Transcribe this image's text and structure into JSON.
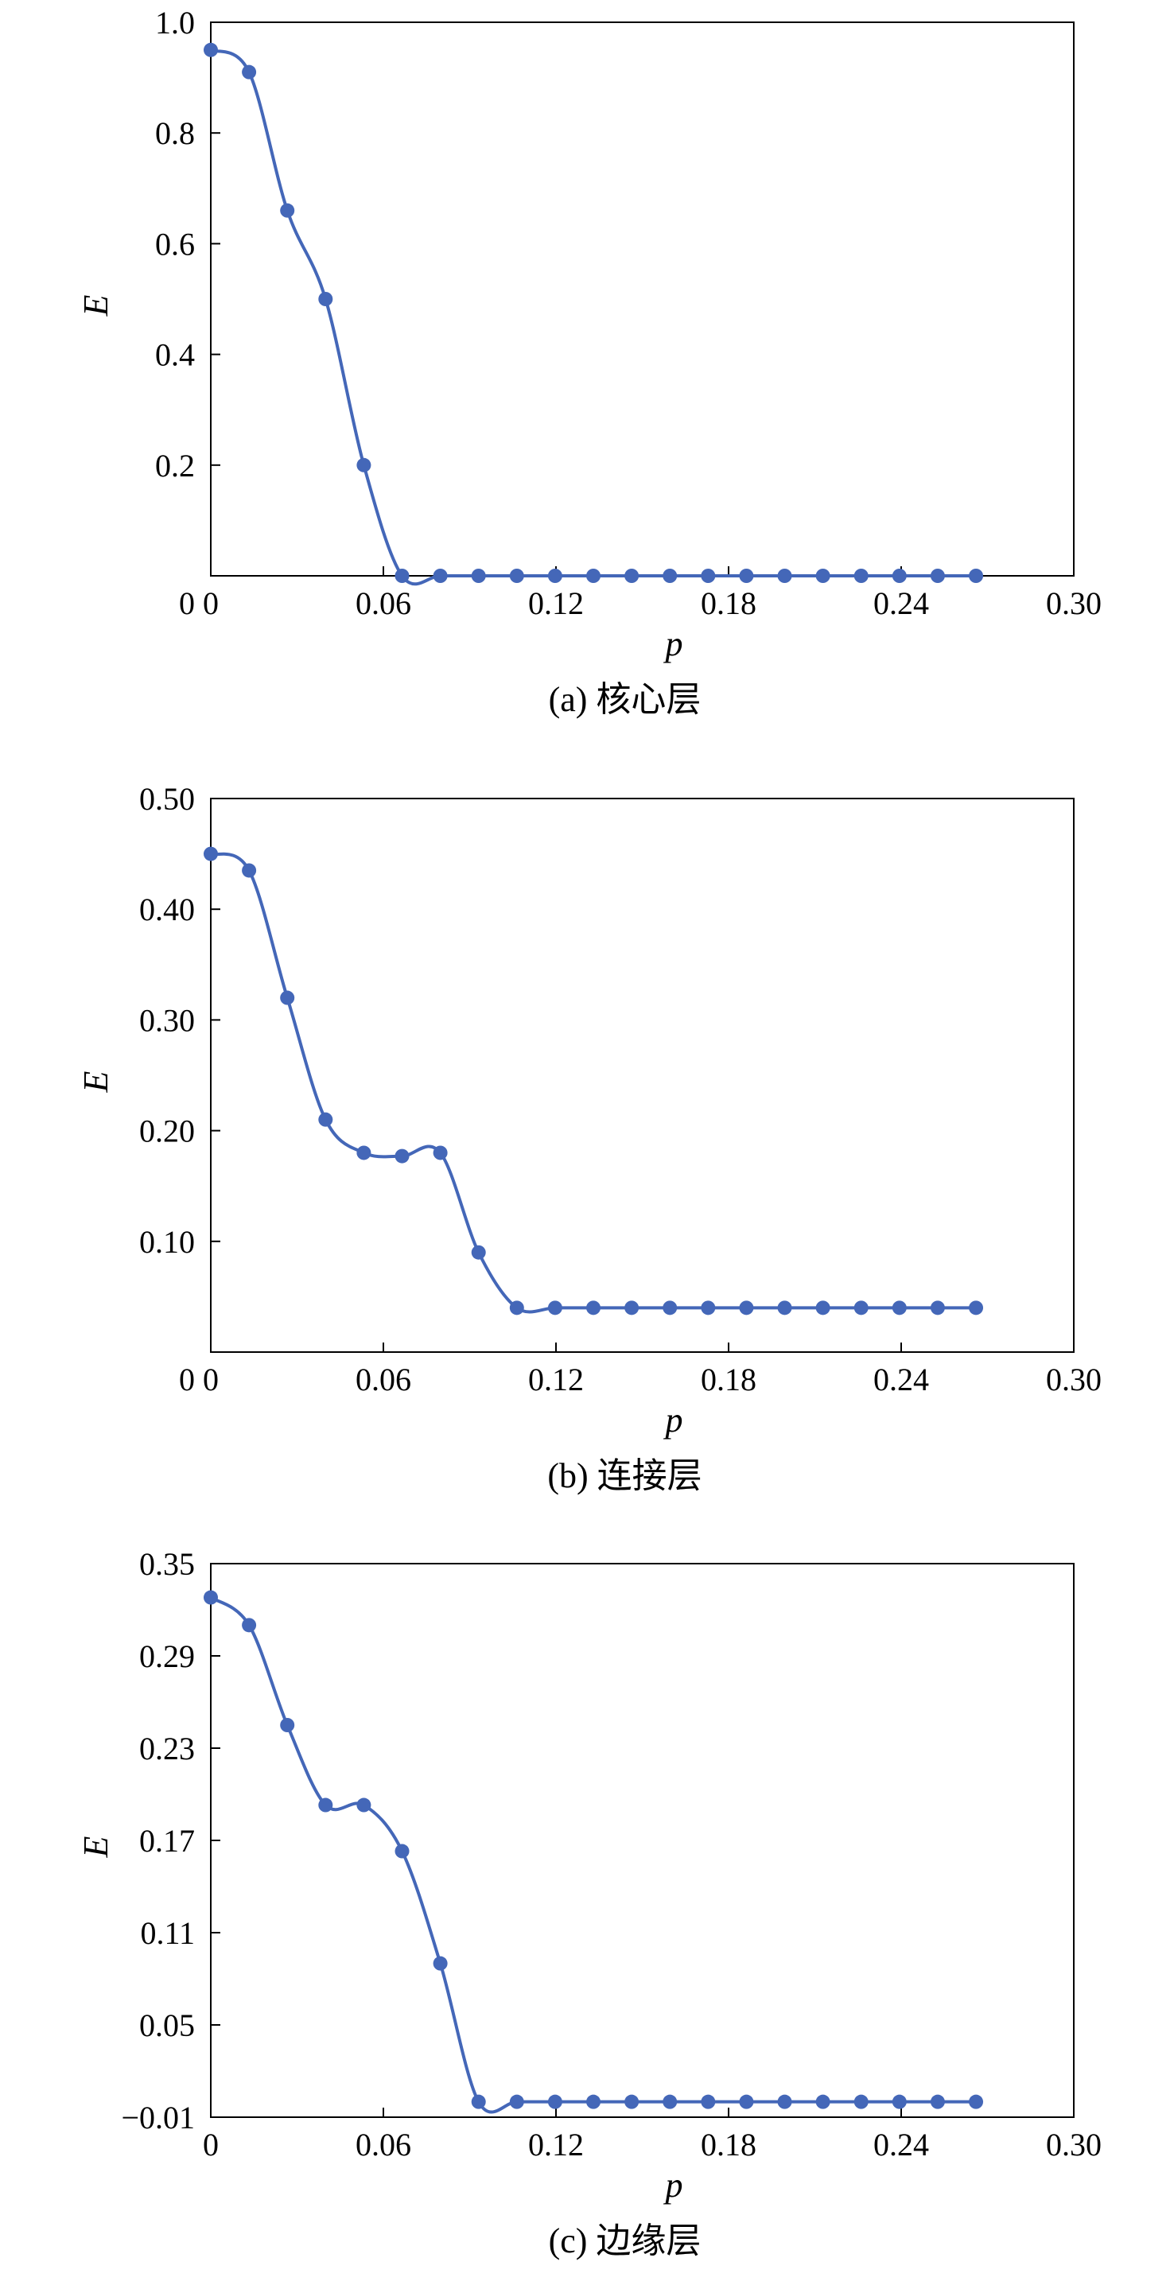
{
  "style": {
    "series_color": "#4467b8",
    "axis_color": "#000000"
  },
  "chart_data": [
    {
      "type": "line",
      "caption": "(a) 核心层",
      "xlabel": "p",
      "ylabel": "E",
      "xlim": [
        0,
        0.3
      ],
      "ylim": [
        0,
        1.0
      ],
      "xticks": [
        0,
        0.06,
        0.12,
        0.18,
        0.24,
        0.3
      ],
      "xtick_labels": [
        "0",
        "0.06",
        "0.12",
        "0.18",
        "0.24",
        "0.30"
      ],
      "yticks": [
        0.2,
        0.4,
        0.6,
        0.8,
        1.0
      ],
      "ytick_labels": [
        "0.2",
        "0.4",
        "0.6",
        "0.8",
        "1.0"
      ],
      "x": [
        0,
        0.0133,
        0.0266,
        0.0399,
        0.0532,
        0.0665,
        0.0798,
        0.0931,
        0.1064,
        0.1197,
        0.133,
        0.1463,
        0.1596,
        0.1729,
        0.1862,
        0.1995,
        0.2128,
        0.2261,
        0.2394,
        0.2527,
        0.266
      ],
      "y": [
        0.95,
        0.91,
        0.66,
        0.5,
        0.2,
        0.0,
        0.0,
        0.0,
        0.0,
        0.0,
        0.0,
        0.0,
        0.0,
        0.0,
        0.0,
        0.0,
        0.0,
        0.0,
        0.0,
        0.0,
        0.0
      ]
    },
    {
      "type": "line",
      "caption": "(b) 连接层",
      "xlabel": "p",
      "ylabel": "E",
      "xlim": [
        0,
        0.3
      ],
      "ylim": [
        0,
        0.5
      ],
      "xticks": [
        0,
        0.06,
        0.12,
        0.18,
        0.24,
        0.3
      ],
      "xtick_labels": [
        "0",
        "0.06",
        "0.12",
        "0.18",
        "0.24",
        "0.30"
      ],
      "yticks": [
        0.1,
        0.2,
        0.3,
        0.4,
        0.5
      ],
      "ytick_labels": [
        "0.10",
        "0.20",
        "0.30",
        "0.40",
        "0.50"
      ],
      "x": [
        0,
        0.0133,
        0.0266,
        0.0399,
        0.0532,
        0.0665,
        0.0798,
        0.0931,
        0.1064,
        0.1197,
        0.133,
        0.1463,
        0.1596,
        0.1729,
        0.1862,
        0.1995,
        0.2128,
        0.2261,
        0.2394,
        0.2527,
        0.266
      ],
      "y": [
        0.45,
        0.435,
        0.32,
        0.21,
        0.18,
        0.177,
        0.18,
        0.09,
        0.04,
        0.04,
        0.04,
        0.04,
        0.04,
        0.04,
        0.04,
        0.04,
        0.04,
        0.04,
        0.04,
        0.04,
        0.04
      ]
    },
    {
      "type": "line",
      "caption": "(c) 边缘层",
      "xlabel": "p",
      "ylabel": "E",
      "xlim": [
        0,
        0.3
      ],
      "ylim": [
        -0.01,
        0.35
      ],
      "xticks": [
        0,
        0.06,
        0.12,
        0.18,
        0.24,
        0.3
      ],
      "xtick_labels": [
        "0",
        "0.06",
        "0.12",
        "0.18",
        "0.24",
        "0.30"
      ],
      "yticks": [
        -0.01,
        0.05,
        0.11,
        0.17,
        0.23,
        0.29,
        0.35
      ],
      "ytick_labels": [
        "−0.01",
        "0.05",
        "0.11",
        "0.17",
        "0.23",
        "0.29",
        "0.35"
      ],
      "x": [
        0,
        0.0133,
        0.0266,
        0.0399,
        0.0532,
        0.0665,
        0.0798,
        0.0931,
        0.1064,
        0.1197,
        0.133,
        0.1463,
        0.1596,
        0.1729,
        0.1862,
        0.1995,
        0.2128,
        0.2261,
        0.2394,
        0.2527,
        0.266
      ],
      "y": [
        0.328,
        0.31,
        0.245,
        0.193,
        0.193,
        0.163,
        0.09,
        0.0,
        0.0,
        0.0,
        0.0,
        0.0,
        0.0,
        0.0,
        0.0,
        0.0,
        0.0,
        0.0,
        0.0,
        0.0,
        0.0
      ]
    }
  ]
}
